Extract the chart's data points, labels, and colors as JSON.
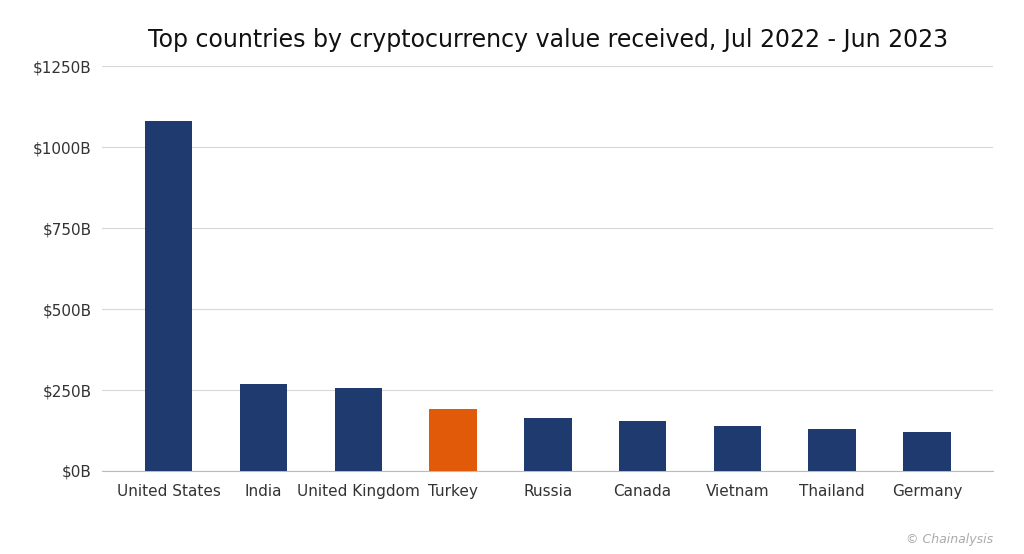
{
  "title": "Top countries by cryptocurrency value received, Jul 2022 - Jun 2023",
  "categories": [
    "United States",
    "India",
    "United Kingdom",
    "Turkey",
    "Russia",
    "Canada",
    "Vietnam",
    "Thailand",
    "Germany"
  ],
  "values": [
    1080,
    270,
    255,
    190,
    165,
    155,
    140,
    130,
    120
  ],
  "bar_colors": [
    "#1e3a6e",
    "#1e3a6e",
    "#1e3a6e",
    "#e05a0a",
    "#1e3a6e",
    "#1e3a6e",
    "#1e3a6e",
    "#1e3a6e",
    "#1e3a6e"
  ],
  "ylim": [
    0,
    1250
  ],
  "yticks": [
    0,
    250,
    500,
    750,
    1000,
    1250
  ],
  "ytick_labels": [
    "$0B",
    "$250B",
    "$500B",
    "$750B",
    "$1000B",
    "$1250B"
  ],
  "background_color": "#ffffff",
  "title_fontsize": 17,
  "tick_fontsize": 11,
  "watermark": "© Chainalysis",
  "grid_color": "#d8d8d8",
  "spine_color": "#bbbbbb",
  "text_color": "#333333",
  "bar_width": 0.5
}
